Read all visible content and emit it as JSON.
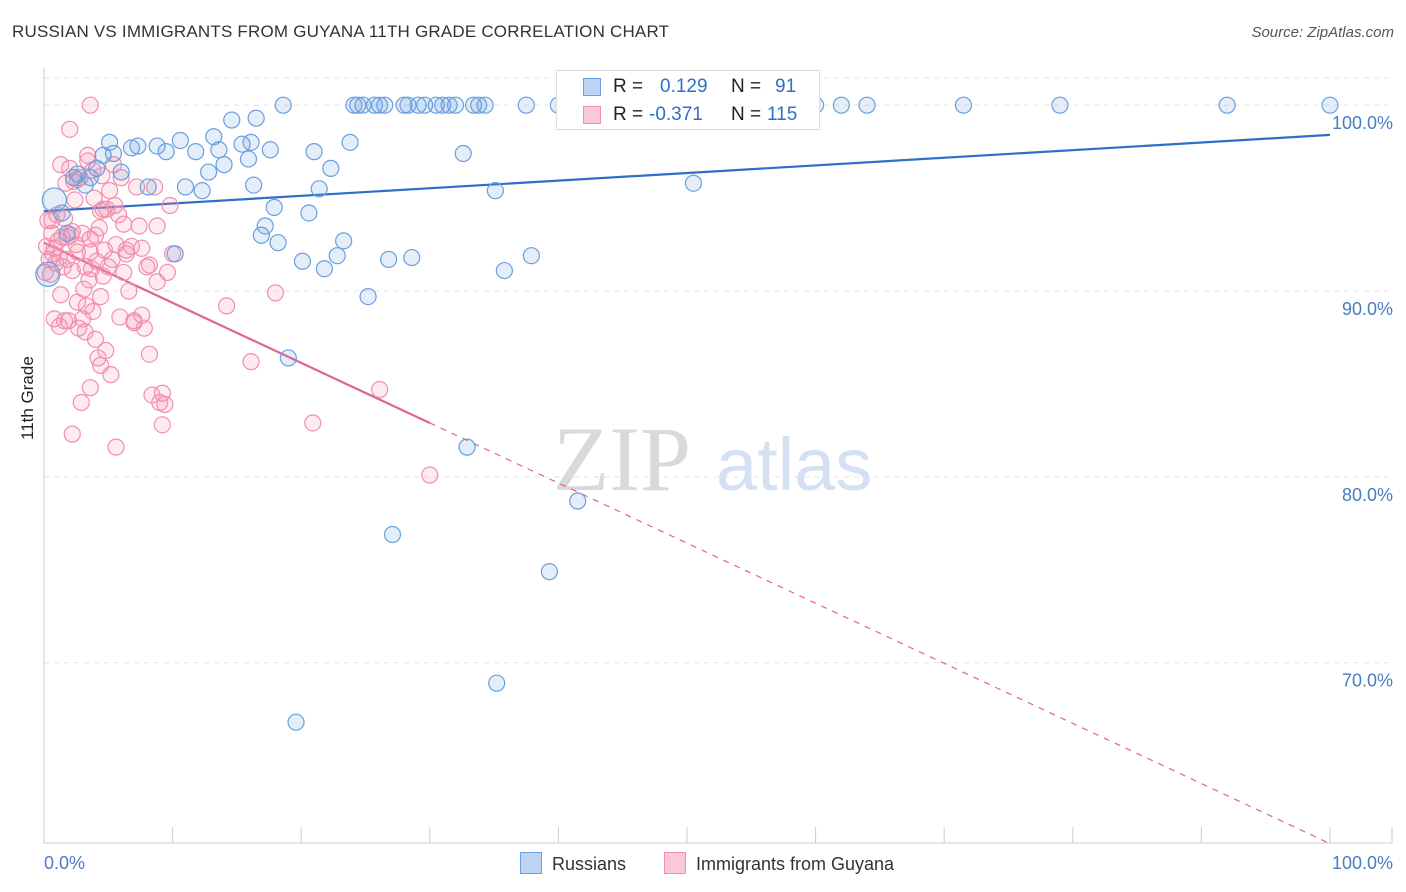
{
  "title": "RUSSIAN VS IMMIGRANTS FROM GUYANA 11TH GRADE CORRELATION CHART",
  "source": "Source: ZipAtlas.com",
  "watermark": {
    "zip": "ZIP",
    "atlas": "atlas"
  },
  "colors": {
    "blue": "#6a9fe0",
    "blue_line": "#2f6fc7",
    "pink": "#f28fae",
    "pink_line": "#e0648f",
    "axis_text": "#4a7cc4"
  },
  "legend": {
    "russians": "Russians",
    "guyana": "Immigrants from Guyana"
  },
  "stats": {
    "russians": {
      "r_label": "R =",
      "r": "0.129",
      "n_label": "N =",
      "n": "91"
    },
    "guyana": {
      "r_label": "R =",
      "r": "-0.371",
      "n_label": "N =",
      "n": "115"
    }
  },
  "chart_data": {
    "type": "scatter",
    "title": "RUSSIAN VS IMMIGRANTS FROM GUYANA 11TH GRADE CORRELATION CHART",
    "xlabel": "",
    "ylabel": "11th Grade",
    "xlim": [
      0,
      100
    ],
    "ylim": [
      60.3,
      102
    ],
    "x_tick_labels": [
      "0.0%",
      "100.0%"
    ],
    "y_ticks": [
      70,
      80,
      90,
      100
    ],
    "y_tick_labels": [
      "70.0%",
      "80.0%",
      "90.0%",
      "100.0%"
    ],
    "grid": true,
    "legend_position": "bottom",
    "series": [
      {
        "name": "Russians",
        "color": "#6a9fe0",
        "trend": {
          "x": [
            0,
            100
          ],
          "y": [
            94.3,
            98.4
          ],
          "dashed_to": 100
        },
        "points": [
          [
            0.3,
            90.9
          ],
          [
            0.8,
            94.9
          ],
          [
            1.4,
            94.2
          ],
          [
            1.8,
            93.1
          ],
          [
            2.3,
            96.1
          ],
          [
            2.6,
            96.3
          ],
          [
            3.2,
            95.7
          ],
          [
            3.6,
            96.1
          ],
          [
            4.1,
            96.6
          ],
          [
            4.6,
            97.3
          ],
          [
            5.1,
            98.0
          ],
          [
            5.4,
            97.4
          ],
          [
            6.0,
            96.4
          ],
          [
            6.8,
            97.7
          ],
          [
            7.3,
            97.8
          ],
          [
            8.1,
            95.6
          ],
          [
            8.8,
            97.8
          ],
          [
            9.5,
            97.5
          ],
          [
            10.2,
            92.0
          ],
          [
            10.6,
            98.1
          ],
          [
            11.0,
            95.6
          ],
          [
            11.8,
            97.5
          ],
          [
            12.3,
            95.4
          ],
          [
            12.8,
            96.4
          ],
          [
            13.2,
            98.3
          ],
          [
            13.6,
            97.6
          ],
          [
            14.0,
            96.8
          ],
          [
            14.6,
            99.2
          ],
          [
            15.4,
            97.9
          ],
          [
            15.9,
            97.1
          ],
          [
            16.1,
            98.0
          ],
          [
            16.3,
            95.7
          ],
          [
            16.5,
            99.3
          ],
          [
            16.9,
            93.0
          ],
          [
            17.2,
            93.5
          ],
          [
            17.6,
            97.6
          ],
          [
            17.9,
            94.5
          ],
          [
            18.2,
            92.6
          ],
          [
            18.6,
            100.0
          ],
          [
            19.0,
            86.4
          ],
          [
            19.6,
            66.8
          ],
          [
            20.1,
            91.6
          ],
          [
            20.6,
            94.2
          ],
          [
            21.0,
            97.5
          ],
          [
            21.4,
            95.5
          ],
          [
            21.8,
            91.2
          ],
          [
            22.3,
            96.6
          ],
          [
            22.8,
            91.9
          ],
          [
            23.3,
            92.7
          ],
          [
            23.8,
            98.0
          ],
          [
            24.1,
            100.0
          ],
          [
            24.4,
            100.0
          ],
          [
            24.8,
            100.0
          ],
          [
            25.2,
            89.7
          ],
          [
            25.7,
            100.0
          ],
          [
            26.1,
            100.0
          ],
          [
            26.5,
            100.0
          ],
          [
            26.8,
            91.7
          ],
          [
            27.1,
            76.9
          ],
          [
            28.0,
            100.0
          ],
          [
            28.3,
            100.0
          ],
          [
            28.6,
            91.8
          ],
          [
            29.1,
            100.0
          ],
          [
            29.6,
            100.0
          ],
          [
            30.5,
            100.0
          ],
          [
            31.0,
            100.0
          ],
          [
            31.5,
            100.0
          ],
          [
            32.0,
            100.0
          ],
          [
            32.6,
            97.4
          ],
          [
            32.9,
            81.6
          ],
          [
            33.4,
            100.0
          ],
          [
            33.8,
            100.0
          ],
          [
            34.3,
            100.0
          ],
          [
            35.1,
            95.4
          ],
          [
            35.2,
            68.9
          ],
          [
            35.8,
            91.1
          ],
          [
            37.5,
            100.0
          ],
          [
            37.9,
            91.9
          ],
          [
            39.3,
            74.9
          ],
          [
            40.0,
            100.0
          ],
          [
            41.5,
            78.7
          ],
          [
            50.0,
            100.0
          ],
          [
            50.5,
            95.8
          ],
          [
            52.0,
            100.0
          ],
          [
            60.0,
            100.0
          ],
          [
            62.0,
            100.0
          ],
          [
            64.0,
            100.0
          ],
          [
            71.5,
            100.0
          ],
          [
            79.0,
            100.0
          ],
          [
            92.0,
            100.0
          ],
          [
            100.0,
            100.0
          ]
        ]
      },
      {
        "name": "Immigrants from Guyana",
        "color": "#f28fae",
        "trend": {
          "x": [
            0,
            30
          ],
          "y": [
            92.6,
            82.9
          ],
          "dashed_to": 100
        },
        "points": [
          [
            0.1,
            91.0
          ],
          [
            0.2,
            92.4
          ],
          [
            0.3,
            93.8
          ],
          [
            0.4,
            91.7
          ],
          [
            0.5,
            90.9
          ],
          [
            0.6,
            93.1
          ],
          [
            0.7,
            92.0
          ],
          [
            0.8,
            88.5
          ],
          [
            0.9,
            91.5
          ],
          [
            1.0,
            94.1
          ],
          [
            1.1,
            92.7
          ],
          [
            1.2,
            88.1
          ],
          [
            1.3,
            89.8
          ],
          [
            1.4,
            92.9
          ],
          [
            1.5,
            91.3
          ],
          [
            1.6,
            88.4
          ],
          [
            1.7,
            95.8
          ],
          [
            1.8,
            92.9
          ],
          [
            1.9,
            88.4
          ],
          [
            2.0,
            96.6
          ],
          [
            2.1,
            93.0
          ],
          [
            2.2,
            91.1
          ],
          [
            2.3,
            95.9
          ],
          [
            2.4,
            94.9
          ],
          [
            2.5,
            92.5
          ],
          [
            2.6,
            89.4
          ],
          [
            2.7,
            88.0
          ],
          [
            2.8,
            96.1
          ],
          [
            2.9,
            84.0
          ],
          [
            3.0,
            93.1
          ],
          [
            3.1,
            90.1
          ],
          [
            3.2,
            91.3
          ],
          [
            3.3,
            89.2
          ],
          [
            3.4,
            97.0
          ],
          [
            3.5,
            90.6
          ],
          [
            3.6,
            92.1
          ],
          [
            3.7,
            91.2
          ],
          [
            3.8,
            88.9
          ],
          [
            3.9,
            95.0
          ],
          [
            4.0,
            93.0
          ],
          [
            4.1,
            91.6
          ],
          [
            4.2,
            86.4
          ],
          [
            4.3,
            93.4
          ],
          [
            4.4,
            89.7
          ],
          [
            4.5,
            96.2
          ],
          [
            4.6,
            94.4
          ],
          [
            4.7,
            92.2
          ],
          [
            4.8,
            86.8
          ],
          [
            4.9,
            94.4
          ],
          [
            5.0,
            91.3
          ],
          [
            5.1,
            95.4
          ],
          [
            5.2,
            85.5
          ],
          [
            5.3,
            91.7
          ],
          [
            5.4,
            96.8
          ],
          [
            5.5,
            94.6
          ],
          [
            5.6,
            92.5
          ],
          [
            5.8,
            94.1
          ],
          [
            5.9,
            88.6
          ],
          [
            6.0,
            96.1
          ],
          [
            6.2,
            93.6
          ],
          [
            6.4,
            92.0
          ],
          [
            6.6,
            90.0
          ],
          [
            6.8,
            92.4
          ],
          [
            7.0,
            88.4
          ],
          [
            7.2,
            95.6
          ],
          [
            7.4,
            93.5
          ],
          [
            7.6,
            92.3
          ],
          [
            7.8,
            88.0
          ],
          [
            8.0,
            91.3
          ],
          [
            8.2,
            86.6
          ],
          [
            8.4,
            84.4
          ],
          [
            8.6,
            95.6
          ],
          [
            8.8,
            93.5
          ],
          [
            9.0,
            84.0
          ],
          [
            9.2,
            82.8
          ],
          [
            9.4,
            83.9
          ],
          [
            9.6,
            91.0
          ],
          [
            9.8,
            94.6
          ],
          [
            10.0,
            92.0
          ],
          [
            2.2,
            82.3
          ],
          [
            1.3,
            96.8
          ],
          [
            2.0,
            98.7
          ],
          [
            2.6,
            96.0
          ],
          [
            3.4,
            97.3
          ],
          [
            3.8,
            96.5
          ],
          [
            4.4,
            94.3
          ],
          [
            3.6,
            92.8
          ],
          [
            1.8,
            91.7
          ],
          [
            1.2,
            91.8
          ],
          [
            5.6,
            81.6
          ],
          [
            6.2,
            91.0
          ],
          [
            8.2,
            91.4
          ],
          [
            4.4,
            86.0
          ],
          [
            3.0,
            88.5
          ],
          [
            0.6,
            93.8
          ],
          [
            0.8,
            92.3
          ],
          [
            1.6,
            93.9
          ],
          [
            2.2,
            93.2
          ],
          [
            2.6,
            92.1
          ],
          [
            3.2,
            87.8
          ],
          [
            3.6,
            84.8
          ],
          [
            4.0,
            87.4
          ],
          [
            4.6,
            90.8
          ],
          [
            6.4,
            92.2
          ],
          [
            7.0,
            88.3
          ],
          [
            7.6,
            88.7
          ],
          [
            8.8,
            90.5
          ],
          [
            9.2,
            84.5
          ],
          [
            14.2,
            89.2
          ],
          [
            16.1,
            86.2
          ],
          [
            18.0,
            89.9
          ],
          [
            20.9,
            82.9
          ],
          [
            26.1,
            84.7
          ],
          [
            30.0,
            80.1
          ],
          [
            3.6,
            100.0
          ]
        ]
      }
    ]
  }
}
